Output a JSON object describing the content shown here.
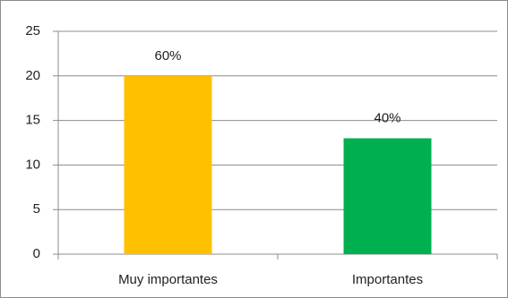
{
  "chart_data": {
    "type": "bar",
    "categories": [
      "Muy importantes",
      "Importantes"
    ],
    "values": [
      20,
      13
    ],
    "annotations": [
      "60%",
      "40%"
    ],
    "colors": [
      "#ffc000",
      "#00b050"
    ],
    "ylim": [
      0,
      25
    ],
    "yticks": [
      0,
      5,
      10,
      15,
      20,
      25
    ],
    "grid": true
  }
}
